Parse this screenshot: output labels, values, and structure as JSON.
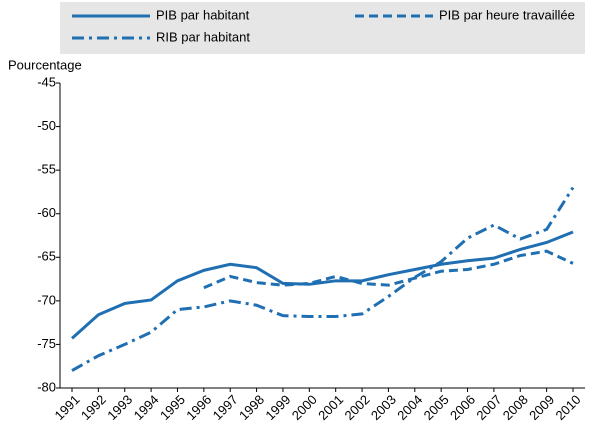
{
  "chart_data": {
    "type": "line",
    "y_label": "Pourcentage",
    "categories": [
      "1991",
      "1992",
      "1993",
      "1994",
      "1995",
      "1996",
      "1997",
      "1998",
      "1999",
      "2000",
      "2001",
      "2002",
      "2003",
      "2004",
      "2005",
      "2006",
      "2007",
      "2008",
      "2009",
      "2010"
    ],
    "series": [
      {
        "name": "PIB par habitant",
        "color": "#1f6fb2",
        "dash": "solid",
        "values": [
          -74.3,
          -71.6,
          -70.3,
          -69.9,
          -67.7,
          -66.5,
          -65.8,
          -66.2,
          -68.0,
          -68.1,
          -67.7,
          -67.7,
          -67.0,
          -66.4,
          -65.8,
          -65.4,
          -65.1,
          -64.1,
          -63.3,
          -62.1
        ]
      },
      {
        "name": "PIB par heure travaillée",
        "color": "#1f6fb2",
        "dash": "dashed",
        "values": [
          null,
          null,
          null,
          null,
          null,
          -68.5,
          -67.2,
          -67.9,
          -68.2,
          -68.0,
          -67.2,
          -68.0,
          -68.2,
          -67.4,
          -66.6,
          -66.4,
          -65.8,
          -64.8,
          -64.3,
          -65.7
        ]
      },
      {
        "name": "RIB par habitant",
        "color": "#1f6fb2",
        "dash": "dashdot",
        "values": [
          -78.0,
          -76.3,
          -75.0,
          -73.6,
          -71.0,
          -70.7,
          -70.0,
          -70.5,
          -71.7,
          -71.8,
          -71.8,
          -71.5,
          -69.5,
          -67.3,
          -65.5,
          -62.8,
          -61.3,
          -62.9,
          -61.8,
          -57.0
        ]
      }
    ],
    "ylim": [
      -80,
      -45
    ],
    "yticks": [
      -80,
      -75,
      -70,
      -65,
      -60,
      -55,
      -50,
      -45
    ],
    "grid": false
  }
}
